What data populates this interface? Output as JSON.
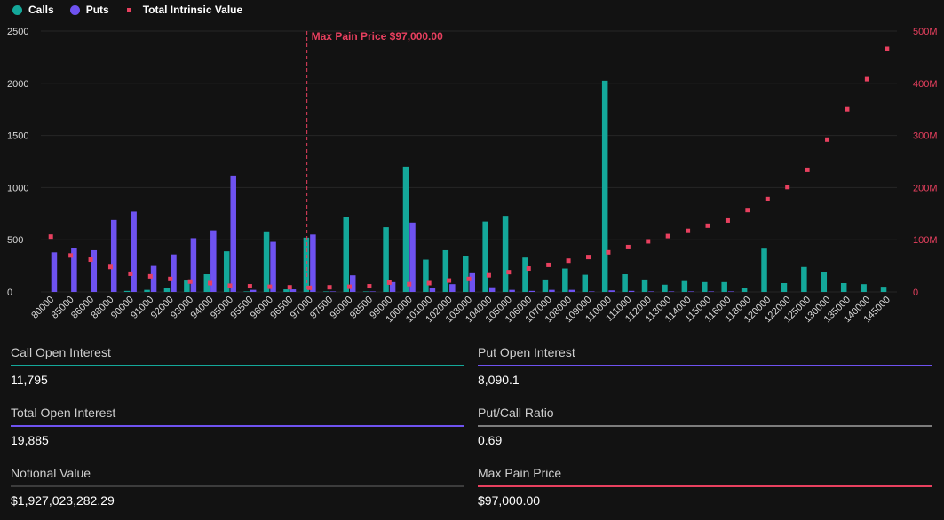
{
  "legend": {
    "calls": "Calls",
    "puts": "Puts",
    "tiv": "Total Intrinsic Value"
  },
  "colors": {
    "calls": "#14a89a",
    "puts": "#6e52f0",
    "tiv": "#e8405f",
    "grid": "#262626",
    "axis_text": "#d8d8d8"
  },
  "chart_data": {
    "type": "bar",
    "categories": [
      "80000",
      "85000",
      "86000",
      "88000",
      "90000",
      "91000",
      "92000",
      "93000",
      "94000",
      "95000",
      "95500",
      "96000",
      "96500",
      "97000",
      "97500",
      "98000",
      "98500",
      "99000",
      "100000",
      "101000",
      "102000",
      "103000",
      "104000",
      "105000",
      "106000",
      "107000",
      "108000",
      "109000",
      "110000",
      "111000",
      "112000",
      "113000",
      "114000",
      "115000",
      "116000",
      "118000",
      "120000",
      "122000",
      "125000",
      "130000",
      "135000",
      "140000",
      "145000"
    ],
    "series": [
      {
        "name": "Calls",
        "axis": "left",
        "kind": "bar",
        "values": [
          0,
          0,
          0,
          0,
          10,
          20,
          40,
          110,
          170,
          390,
          5,
          580,
          25,
          520,
          5,
          715,
          5,
          620,
          1200,
          310,
          400,
          340,
          675,
          730,
          330,
          120,
          225,
          165,
          2025,
          170,
          120,
          70,
          105,
          95,
          95,
          35,
          415,
          85,
          240,
          195,
          85,
          75,
          50
        ]
      },
      {
        "name": "Puts",
        "axis": "left",
        "kind": "bar",
        "values": [
          380,
          420,
          400,
          690,
          770,
          250,
          360,
          515,
          590,
          1115,
          20,
          480,
          25,
          550,
          5,
          160,
          5,
          95,
          665,
          40,
          75,
          180,
          45,
          20,
          10,
          20,
          20,
          5,
          15,
          10,
          5,
          5,
          5,
          5,
          5,
          0,
          0,
          0,
          0,
          0,
          0,
          0,
          0
        ]
      },
      {
        "name": "Total Intrinsic Value",
        "axis": "right",
        "kind": "marker",
        "values": [
          106000000,
          70000000,
          62000000,
          48000000,
          35000000,
          30000000,
          25000000,
          20000000,
          17000000,
          12000000,
          11000000,
          10000000,
          9000000,
          8000000,
          9000000,
          10000000,
          11000000,
          18000000,
          15000000,
          17000000,
          22000000,
          25000000,
          32000000,
          38000000,
          45000000,
          52000000,
          60000000,
          67000000,
          76000000,
          86000000,
          97000000,
          107000000,
          117000000,
          127000000,
          137000000,
          157000000,
          178000000,
          201000000,
          234000000,
          292000000,
          350000000,
          408000000,
          466000000
        ]
      }
    ],
    "y_left": {
      "min": 0,
      "max": 2500,
      "ticks": [
        0,
        500,
        1000,
        1500,
        2000,
        2500
      ],
      "tick_labels": [
        "0",
        "500",
        "1000",
        "1500",
        "2000",
        "2500"
      ]
    },
    "y_right": {
      "min": 0,
      "max": 500000000,
      "ticks": [
        0,
        100000000,
        200000000,
        300000000,
        400000000,
        500000000
      ],
      "tick_labels": [
        "0",
        "100M",
        "200M",
        "300M",
        "400M",
        "500M"
      ]
    },
    "annotation": {
      "label": "Max Pain Price $97,000.00",
      "category": "97000"
    },
    "grid": true,
    "legend_position": "top-left"
  },
  "stats": [
    {
      "label": "Call Open Interest",
      "value": "11,795",
      "color": "#14a89a"
    },
    {
      "label": "Put Open Interest",
      "value": "8,090.1",
      "color": "#6e52f0"
    },
    {
      "label": "Total Open Interest",
      "value": "19,885",
      "color": "#6e52f0"
    },
    {
      "label": "Put/Call Ratio",
      "value": "0.69",
      "color": "#7c7c7c"
    },
    {
      "label": "Notional Value",
      "value": "$1,927,023,282.29",
      "color": "#3c3c3c"
    },
    {
      "label": "Max Pain Price",
      "value": "$97,000.00",
      "color": "#e8405f"
    }
  ]
}
